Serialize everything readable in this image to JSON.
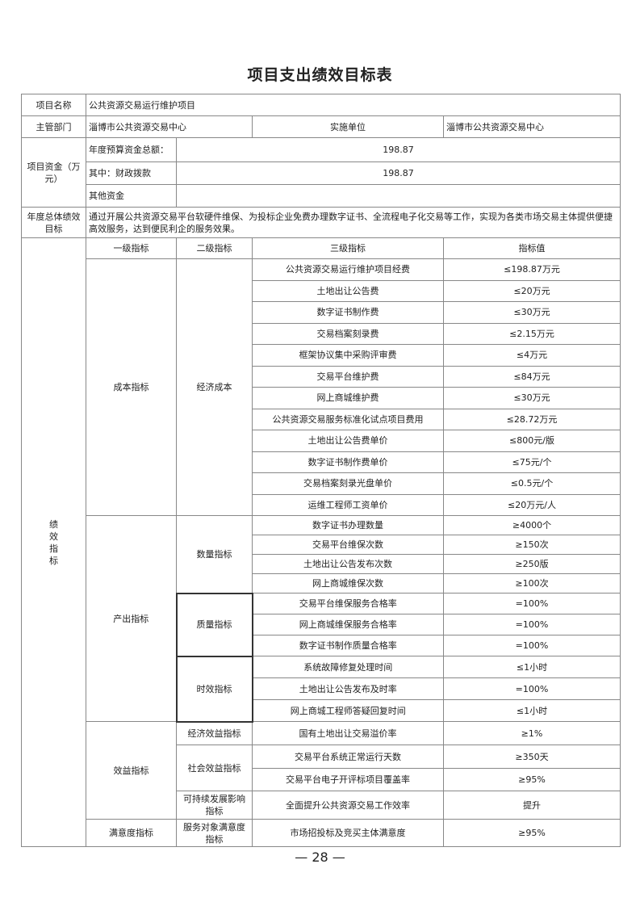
{
  "title": "项目支出绩效目标表",
  "project_name_label": "项目名称",
  "project_name": "公共资源交易运行维护项目",
  "dept_label": "主管部门",
  "dept": "淄博市公共资源交易中心",
  "impl_label": "实施单位",
  "impl": "淄博市公共资源交易中心",
  "funds_label": "项目资金（万元）",
  "funds": [
    {
      "label": "年度预算资金总额：",
      "value": "198.87"
    },
    {
      "label": "其中：财政拨款",
      "value": "198.87"
    },
    {
      "label": "其他资金",
      "value": ""
    }
  ],
  "goal_label": "年度总体绩效目标",
  "goal": "通过开展公共资源交易平台软硬件维保、为投标企业免费办理数字证书、全流程电子化交易等工作，实现为各类市场交易主体提供便捷高效服务，达到便民利企的服务效果。",
  "indicators_label": "绩效指标",
  "headers": [
    "一级指标",
    "二级指标",
    "三级指标",
    "指标值"
  ],
  "groups": [
    {
      "level1": "成本指标",
      "subs": [
        {
          "level2": "经济成本",
          "items": [
            [
              "公共资源交易运行维护项目经费",
              "≤198.87万元"
            ],
            [
              "土地出让公告费",
              "≤20万元"
            ],
            [
              "数字证书制作费",
              "≤30万元"
            ],
            [
              "交易档案刻录费",
              "≤2.15万元"
            ],
            [
              "框架协议集中采购评审费",
              "≤4万元"
            ],
            [
              "交易平台维护费",
              "≤84万元"
            ],
            [
              "网上商城维护费",
              "≤30万元"
            ],
            [
              "公共资源交易服务标准化试点项目费用",
              "≤28.72万元"
            ],
            [
              "土地出让公告费单价",
              "≤800元/版"
            ],
            [
              "数字证书制作费单价",
              "≤75元/个"
            ],
            [
              "交易档案刻录光盘单价",
              "≤0.5元/个"
            ],
            [
              "运维工程师工资单价",
              "≤20万元/人"
            ]
          ]
        }
      ]
    },
    {
      "level1": "产出指标",
      "subs": [
        {
          "level2": "数量指标",
          "items": [
            [
              "数字证书办理数量",
              "≥4000个"
            ],
            [
              "交易平台维保次数",
              "≥150次"
            ],
            [
              "土地出让公告发布次数",
              "≥250版"
            ],
            [
              "网上商城维保次数",
              "≥100次"
            ]
          ]
        },
        {
          "level2": "质量指标",
          "thick": true,
          "items": [
            [
              "交易平台维保服务合格率",
              "=100%"
            ],
            [
              "网上商城维保服务合格率",
              "=100%"
            ],
            [
              "数字证书制作质量合格率",
              "=100%"
            ]
          ]
        },
        {
          "level2": "时效指标",
          "thick": true,
          "items": [
            [
              "系统故障修复处理时间",
              "≤1小时"
            ],
            [
              "土地出让公告发布及时率",
              "=100%"
            ],
            [
              "网上商城工程师答疑回复时间",
              "≤1小时"
            ]
          ]
        }
      ]
    },
    {
      "level1": "效益指标",
      "subs": [
        {
          "level2": "经济效益指标",
          "items": [
            [
              "国有土地出让交易溢价率",
              "≥1%"
            ]
          ]
        },
        {
          "level2": "社会效益指标",
          "items": [
            [
              "交易平台系统正常运行天数",
              "≥350天"
            ],
            [
              "交易平台电子开评标项目覆盖率",
              "≥95%"
            ]
          ]
        },
        {
          "level2": "可持续发展影响指标",
          "items": [
            [
              "全面提升公共资源交易工作效率",
              "提升"
            ]
          ]
        }
      ]
    },
    {
      "level1": "满意度指标",
      "subs": [
        {
          "level2": "服务对象满意度指标",
          "items": [
            [
              "市场招投标及竞买主体满意度",
              "≥95%"
            ]
          ]
        }
      ]
    }
  ],
  "page_number": "— 28 —"
}
